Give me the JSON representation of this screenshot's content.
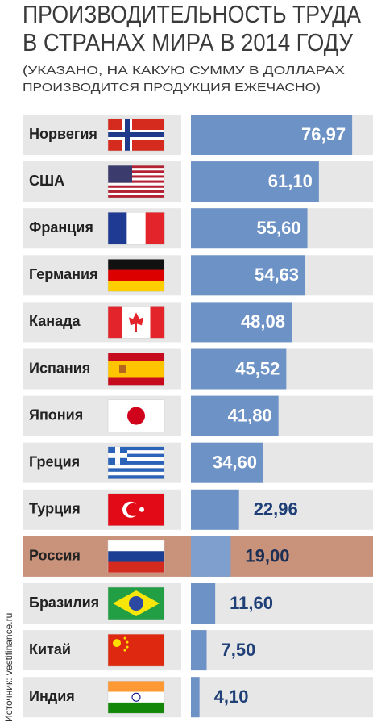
{
  "chart_data": {
    "type": "bar",
    "title": [
      "ПРОИЗВОДИТЕЛЬНОСТЬ ТРУДА",
      "В СТРАНАХ МИРА В 2014 ГОДУ"
    ],
    "subtitle": [
      "(УКАЗАНО, НА КАКУЮ СУММУ В ДОЛЛАРАХ",
      "ПРОИЗВОДИТСЯ ПРОДУКЦИЯ ЕЖЕЧАСНО)"
    ],
    "source": "Источник: vestifinance.ru",
    "categories": [
      "Норвегия",
      "США",
      "Франция",
      "Германия",
      "Канада",
      "Испания",
      "Япония",
      "Греция",
      "Турция",
      "Россия",
      "Бразилия",
      "Китай",
      "Индия"
    ],
    "values": [
      76.97,
      61.1,
      55.6,
      54.63,
      48.08,
      45.52,
      41.8,
      34.6,
      22.96,
      19.0,
      11.6,
      7.5,
      4.1
    ],
    "value_labels": [
      "76,97",
      "61,10",
      "55,60",
      "54,63",
      "48,08",
      "45,52",
      "41,80",
      "34,60",
      "22,96",
      "19,00",
      "11,60",
      "7,50",
      "4,10"
    ],
    "color": "#6d92c6",
    "highlight_index": 9,
    "highlight_color": "#c8927b"
  }
}
